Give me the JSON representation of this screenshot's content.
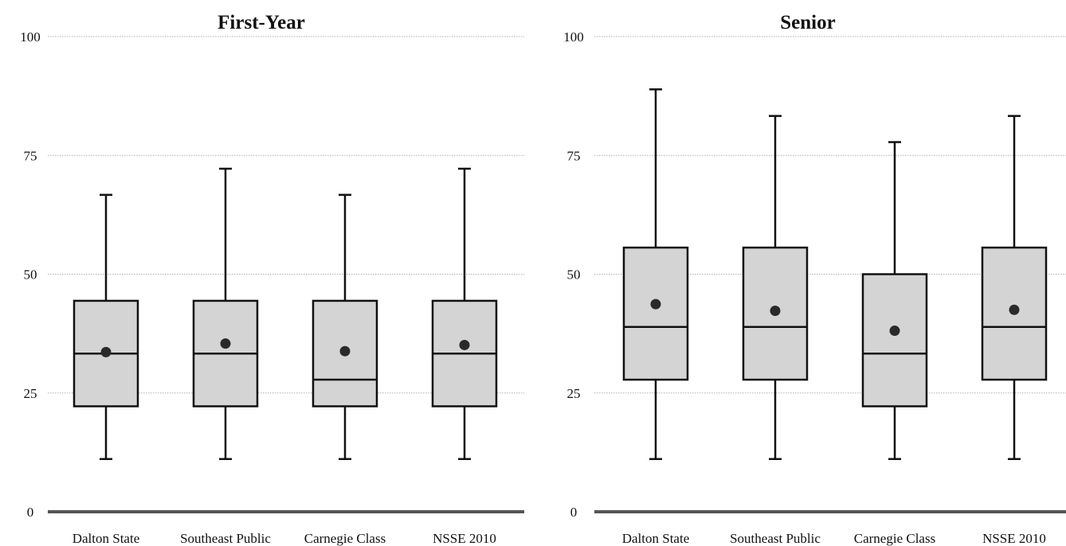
{
  "chart_data": [
    {
      "type": "boxplot",
      "title": "First-Year",
      "ylim": [
        0,
        100
      ],
      "yticks": [
        0,
        25,
        50,
        75,
        100
      ],
      "grid": true,
      "categories": [
        "Dalton State",
        "Southeast Public",
        "Carnegie Class",
        "NSSE 2010"
      ],
      "boxes": [
        {
          "whisker_low": 11.1,
          "q1": 22.2,
          "median": 33.3,
          "q3": 44.4,
          "whisker_high": 66.7,
          "mean": 33.6
        },
        {
          "whisker_low": 11.1,
          "q1": 22.2,
          "median": 33.3,
          "q3": 44.4,
          "whisker_high": 72.2,
          "mean": 35.4
        },
        {
          "whisker_low": 11.1,
          "q1": 22.2,
          "median": 27.8,
          "q3": 44.4,
          "whisker_high": 66.7,
          "mean": 33.8
        },
        {
          "whisker_low": 11.1,
          "q1": 22.2,
          "median": 33.3,
          "q3": 44.4,
          "whisker_high": 72.2,
          "mean": 35.1
        }
      ]
    },
    {
      "type": "boxplot",
      "title": "Senior",
      "ylim": [
        0,
        100
      ],
      "yticks": [
        0,
        25,
        50,
        75,
        100
      ],
      "grid": true,
      "categories": [
        "Dalton State",
        "Southeast Public",
        "Carnegie Class",
        "NSSE 2010"
      ],
      "boxes": [
        {
          "whisker_low": 11.1,
          "q1": 27.8,
          "median": 38.9,
          "q3": 55.6,
          "whisker_high": 88.9,
          "mean": 43.7
        },
        {
          "whisker_low": 11.1,
          "q1": 27.8,
          "median": 38.9,
          "q3": 55.6,
          "whisker_high": 83.3,
          "mean": 42.3
        },
        {
          "whisker_low": 11.1,
          "q1": 22.2,
          "median": 33.3,
          "q3": 50.0,
          "whisker_high": 77.8,
          "mean": 38.1
        },
        {
          "whisker_low": 11.1,
          "q1": 27.8,
          "median": 38.9,
          "q3": 55.6,
          "whisker_high": 83.3,
          "mean": 42.5
        }
      ]
    }
  ],
  "colors": {
    "box_fill": "#d4d4d4",
    "stroke": "#111111",
    "grid": "#b0b0b0",
    "mean_dot": "#2a2a2a"
  }
}
